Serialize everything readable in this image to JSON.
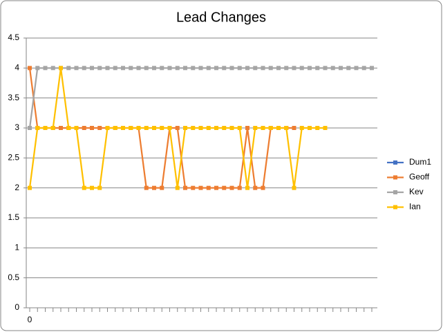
{
  "chart_data": {
    "type": "line",
    "title": "Lead Changes",
    "categories": [
      "0",
      null,
      null,
      null,
      null,
      null,
      null,
      null,
      null,
      null,
      null,
      null,
      null,
      null,
      null,
      null,
      null,
      null,
      null,
      null,
      null,
      null,
      null,
      null,
      null,
      null,
      null,
      null,
      null,
      null,
      null,
      null,
      null,
      null,
      null,
      null,
      null,
      null,
      null,
      null,
      null,
      null,
      null,
      null,
      null
    ],
    "series": [
      {
        "name": "Dum1",
        "color": "#4472c4",
        "values": [
          null,
          null,
          null,
          null,
          null,
          null,
          null,
          null,
          null,
          null,
          null,
          null,
          null,
          null,
          null,
          null,
          null,
          null,
          null,
          null,
          null,
          null,
          null,
          null,
          null,
          null,
          null,
          null,
          null,
          null,
          null,
          null,
          null,
          null,
          null,
          null,
          null,
          null,
          null,
          null,
          null,
          null,
          null,
          null,
          null
        ]
      },
      {
        "name": "Geoff",
        "color": "#ed7d31",
        "values": [
          4,
          3,
          3,
          3,
          3,
          3,
          3,
          3,
          3,
          3,
          3,
          3,
          3,
          3,
          3,
          2,
          2,
          2,
          3,
          3,
          2,
          2,
          2,
          2,
          2,
          2,
          2,
          2,
          3,
          2,
          2,
          3,
          3,
          3,
          3,
          null,
          null,
          null,
          null,
          null,
          null,
          null,
          null,
          null,
          null
        ]
      },
      {
        "name": "Kev",
        "color": "#a5a5a5",
        "values": [
          3,
          4,
          4,
          4,
          4,
          4,
          4,
          4,
          4,
          4,
          4,
          4,
          4,
          4,
          4,
          4,
          4,
          4,
          4,
          4,
          4,
          4,
          4,
          4,
          4,
          4,
          4,
          4,
          4,
          4,
          4,
          4,
          4,
          4,
          4,
          4,
          4,
          4,
          4,
          4,
          4,
          4,
          4,
          4,
          4
        ]
      },
      {
        "name": "Ian",
        "color": "#ffc000",
        "values": [
          2,
          3,
          3,
          3,
          4,
          3,
          3,
          2,
          2,
          2,
          3,
          3,
          3,
          3,
          3,
          3,
          3,
          3,
          3,
          2,
          3,
          3,
          3,
          3,
          3,
          3,
          3,
          3,
          2,
          3,
          3,
          3,
          3,
          3,
          2,
          3,
          3,
          3,
          3,
          null,
          null,
          null,
          null,
          null,
          null
        ]
      }
    ],
    "ylim": [
      0,
      4.5
    ],
    "yticks": [
      0,
      0.5,
      1,
      1.5,
      2,
      2.5,
      3,
      3.5,
      4,
      4.5
    ],
    "grid": true,
    "legend": "right"
  }
}
